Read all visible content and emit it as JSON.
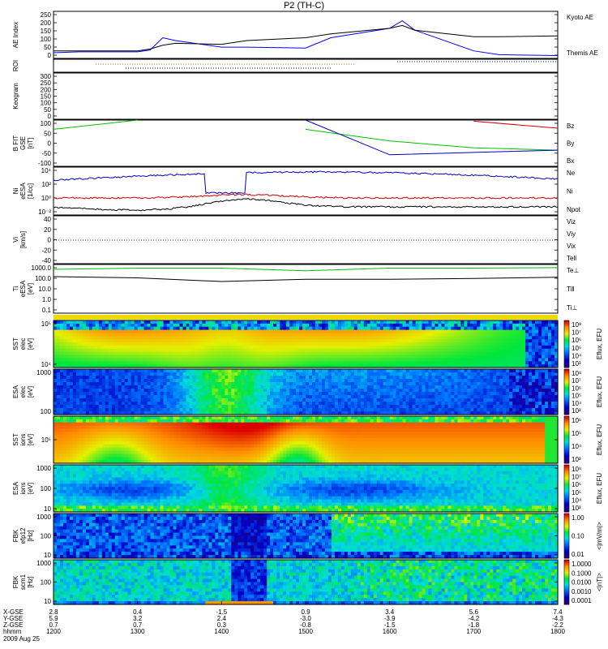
{
  "title": "P2 (TH-C)",
  "panels": [
    {
      "id": "ae",
      "ylabel": "AE Index",
      "ticks": [
        "250",
        "200",
        "150",
        "100",
        "50",
        "0"
      ],
      "legend": [
        {
          "label": "Kyoto AE",
          "color": "#0000ff"
        },
        {
          "label": "Themis AE",
          "color": "#000000"
        }
      ]
    },
    {
      "id": "roi",
      "ylabel": "ROI",
      "ticks": [],
      "legend": []
    },
    {
      "id": "keogram",
      "ylabel": "Keogram",
      "ticks": [
        "300",
        "250",
        "200",
        "150",
        "100",
        "50",
        "0"
      ],
      "legend": []
    },
    {
      "id": "bfit",
      "ylabel": "B FIT",
      "ylabel2": "GSE",
      "ylabel3": "[nT]",
      "ticks": [
        "100",
        "50",
        "0",
        "-50",
        "-100"
      ],
      "legend": [
        {
          "label": "Bz",
          "color": "#d00000"
        },
        {
          "label": "By",
          "color": "#00c000"
        },
        {
          "label": "Bx",
          "color": "#0000c0"
        }
      ]
    },
    {
      "id": "ni",
      "ylabel": "Ni",
      "ylabel2": "eESA",
      "ylabel3": "[1/cc]",
      "ticks": [
        "10⁴",
        "10²",
        "10⁰",
        "10⁻²"
      ],
      "legend": [
        {
          "label": "Ne",
          "color": "#d00000"
        },
        {
          "label": "Ni",
          "color": "#000000"
        },
        {
          "label": "Npot",
          "color": "#0000c0"
        }
      ]
    },
    {
      "id": "vi",
      "ylabel": "Vi",
      "ylabel2": "[km/s]",
      "ticks": [
        "40",
        "20",
        "0",
        "-20",
        "-40"
      ],
      "legend": [
        {
          "label": "Viz",
          "color": "#d00000"
        },
        {
          "label": "Viy",
          "color": "#00c000"
        },
        {
          "label": "Vix",
          "color": "#0000c0"
        },
        {
          "label": "Tell",
          "color": "#000000"
        }
      ]
    },
    {
      "id": "te",
      "ylabel": "Ti",
      "ylabel2": "eESA",
      "ylabel3": "[eV]",
      "ticks": [
        "1000.0",
        "100.0",
        "10.0",
        "1.0",
        "0.1"
      ],
      "legend": [
        {
          "label": "Te⊥",
          "color": "#d00000"
        },
        {
          "label": "Ti‖",
          "color": "#00c000"
        },
        {
          "label": "Ti⊥",
          "color": "#0000c0"
        }
      ]
    },
    {
      "id": "sst_e",
      "ylabel": "SST",
      "ylabel2": "elec",
      "ylabel3": "[eV]",
      "ticks": [
        "10⁵",
        "10⁴"
      ],
      "cbar": {
        "label": "Eflux, EFU",
        "ticks": [
          "10⁸",
          "10⁷",
          "10⁶",
          "10⁵",
          "10⁴",
          "10³"
        ]
      }
    },
    {
      "id": "esa_e",
      "ylabel": "ESA",
      "ylabel2": "elec",
      "ylabel3": "[eV]",
      "ticks": [
        "1000",
        "100"
      ],
      "cbar": {
        "label": "Eflux, EFU",
        "ticks": [
          "10⁸",
          "10⁷",
          "10⁶",
          "10⁵",
          "10⁴",
          "10³"
        ]
      }
    },
    {
      "id": "sst_i",
      "ylabel": "SST",
      "ylabel2": "ions",
      "ylabel3": "[eV]",
      "ticks": [
        "10⁵"
      ],
      "cbar": {
        "label": "Eflux, EFU",
        "ticks": [
          "10⁶",
          "10⁵",
          "10⁴",
          "10³"
        ]
      }
    },
    {
      "id": "esa_i",
      "ylabel": "ESA",
      "ylabel2": "ions",
      "ylabel3": "[eV]",
      "ticks": [
        "1000",
        "100",
        "10"
      ],
      "cbar": {
        "label": "Eflux, EFU",
        "ticks": [
          "10⁸",
          "10⁷",
          "10⁶",
          "10⁵",
          "10⁴",
          "10³"
        ]
      }
    },
    {
      "id": "fbk1",
      "ylabel": "FBK",
      "ylabel2": "efp12",
      "ylabel3": "[Hz]",
      "ticks": [
        "1000",
        "100",
        "10"
      ],
      "cbar": {
        "label": "<|mV/m|>",
        "ticks": [
          "1.00",
          "0.10",
          "0.01"
        ]
      }
    },
    {
      "id": "fbk2",
      "ylabel": "FBK",
      "ylabel2": "scm1",
      "ylabel3": "[Hz]",
      "ticks": [
        "1000",
        "100",
        "10"
      ],
      "cbar": {
        "label": "<|nT|>",
        "ticks": [
          "1.0000",
          "0.1000",
          "0.0100",
          "0.0010",
          "0.0001"
        ]
      }
    }
  ],
  "xaxis": {
    "rows": [
      {
        "label": "X-GSE",
        "values": [
          "2.8",
          "0.4",
          "-1.5",
          "0.9",
          "3.4",
          "5.6",
          "7.4"
        ]
      },
      {
        "label": "Y-GSE",
        "values": [
          "5.9",
          "3.2",
          "2.4",
          "-3.0",
          "-3.9",
          "-4.2",
          "-4.3"
        ]
      },
      {
        "label": "Z-GSE",
        "values": [
          "0.7",
          "0.7",
          "0.3",
          "-0.8",
          "-1.5",
          "-1.8",
          "-2.2"
        ]
      },
      {
        "label": "hhmm",
        "values": [
          "1200",
          "1300",
          "1400",
          "1500",
          "1600",
          "1700",
          "1800"
        ]
      }
    ],
    "date": "2009 Aug 25"
  },
  "chart_data": [
    {
      "type": "line",
      "title": "P2 (TH-C)",
      "ylabel": "AE Index",
      "ylim": [
        0,
        250
      ],
      "x": [
        1200,
        1230,
        1300,
        1315,
        1330,
        1345,
        1400,
        1430,
        1500,
        1530,
        1600,
        1615,
        1630,
        1700,
        1730,
        1800
      ],
      "series": [
        {
          "name": "Kyoto AE",
          "values": [
            30,
            35,
            35,
            45,
            110,
            95,
            60,
            60,
            55,
            110,
            160,
            200,
            150,
            40,
            20,
            15
          ]
        },
        {
          "name": "Themis AE",
          "values": [
            40,
            40,
            40,
            50,
            70,
            80,
            75,
            95,
            110,
            130,
            160,
            175,
            150,
            115,
            115,
            120
          ]
        }
      ]
    },
    {
      "type": "line",
      "ylabel": "B FIT GSE [nT]",
      "ylim": [
        -100,
        100
      ],
      "x": [
        1200,
        1300,
        1400,
        1500,
        1600,
        1700,
        1800
      ],
      "series": [
        {
          "name": "Bz",
          "values": [
            null,
            null,
            null,
            null,
            null,
            95,
            65
          ]
        },
        {
          "name": "By",
          "values": [
            60,
            100,
            null,
            60,
            10,
            -20,
            -30
          ]
        },
        {
          "name": "Bx",
          "values": [
            100,
            null,
            null,
            100,
            -50,
            -40,
            -30
          ]
        }
      ]
    },
    {
      "type": "line",
      "ylabel": "Ti eESA [eV]",
      "ylim": [
        0.1,
        1000
      ],
      "x": [
        1200,
        1300,
        1400,
        1500,
        1600,
        1700,
        1800
      ],
      "series": [
        {
          "name": "Ti‖",
          "values": [
            400,
            500,
            500,
            300,
            500,
            500,
            550
          ]
        },
        {
          "name": "Tell",
          "values": [
            100,
            80,
            40,
            60,
            60,
            70,
            90
          ]
        }
      ]
    }
  ],
  "colors": {
    "frame": "#000000",
    "fbk_red": "#cc0000"
  }
}
